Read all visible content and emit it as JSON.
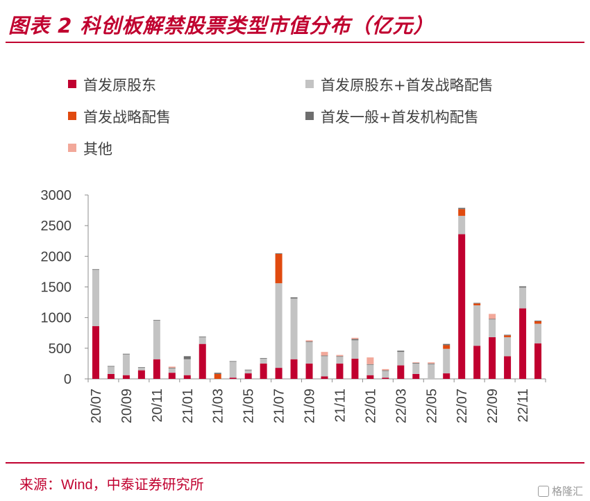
{
  "header": {
    "title": "图表 2 科创板解禁股票类型市值分布（亿元）"
  },
  "source": {
    "label": "来源：",
    "content": "Wind，中泰证券研究所"
  },
  "watermark": {
    "text": "格隆汇"
  },
  "colors": {
    "brand": "#c0002f",
    "首发原股东": "#c0002f",
    "首发原股东+首发战略配售": "#c3c3c3",
    "首发战略配售": "#e04a0f",
    "首发一般+首发机构配售": "#6e6e6e",
    "其他": "#f2a89a"
  },
  "chart_data": {
    "type": "bar",
    "stacked": true,
    "ylim": [
      0,
      3000
    ],
    "yticks": [
      0,
      500,
      1000,
      1500,
      2000,
      2500,
      3000
    ],
    "xticks": [
      "20/07",
      "20/09",
      "20/11",
      "21/01",
      "21/03",
      "21/05",
      "21/07",
      "21/09",
      "21/11",
      "22/01",
      "22/03",
      "22/05",
      "22/07",
      "22/09",
      "22/11"
    ],
    "legend_position": "top",
    "categories": [
      "20/07",
      "20/08",
      "20/09",
      "20/10",
      "20/11",
      "20/12",
      "21/01",
      "21/02",
      "21/03",
      "21/04",
      "21/05",
      "21/06",
      "21/07",
      "21/08",
      "21/09",
      "21/10",
      "21/11",
      "21/12",
      "22/01",
      "22/02",
      "22/03",
      "22/04",
      "22/05",
      "22/06",
      "22/07",
      "22/08",
      "22/09",
      "22/10",
      "22/11",
      "22/12"
    ],
    "series": [
      {
        "name": "首发原股东",
        "values": [
          860,
          80,
          60,
          140,
          320,
          100,
          60,
          570,
          0,
          20,
          90,
          250,
          180,
          320,
          250,
          40,
          250,
          330,
          60,
          20,
          220,
          80,
          0,
          90,
          2360,
          540,
          680,
          370,
          1150,
          580
        ]
      },
      {
        "name": "首发原股东+首发战略配售",
        "values": [
          920,
          120,
          340,
          40,
          630,
          70,
          260,
          110,
          0,
          260,
          50,
          80,
          1380,
          990,
          350,
          330,
          110,
          300,
          170,
          110,
          220,
          170,
          240,
          400,
          300,
          660,
          290,
          310,
          340,
          320
        ]
      },
      {
        "name": "首发战略配售",
        "values": [
          0,
          0,
          0,
          0,
          0,
          0,
          0,
          0,
          80,
          0,
          0,
          0,
          480,
          0,
          0,
          0,
          0,
          0,
          0,
          0,
          0,
          0,
          0,
          60,
          110,
          30,
          0,
          30,
          0,
          40
        ]
      },
      {
        "name": "首发一般+首发机构配售",
        "values": [
          10,
          10,
          10,
          10,
          10,
          10,
          50,
          10,
          20,
          10,
          10,
          10,
          10,
          20,
          10,
          10,
          10,
          20,
          10,
          10,
          20,
          10,
          10,
          20,
          20,
          10,
          10,
          10,
          20,
          10
        ]
      },
      {
        "name": "其他",
        "values": [
          0,
          0,
          0,
          0,
          0,
          20,
          0,
          0,
          0,
          0,
          0,
          0,
          0,
          0,
          20,
          60,
          20,
          20,
          110,
          20,
          0,
          10,
          20,
          0,
          0,
          0,
          80,
          0,
          0,
          0
        ]
      }
    ]
  }
}
